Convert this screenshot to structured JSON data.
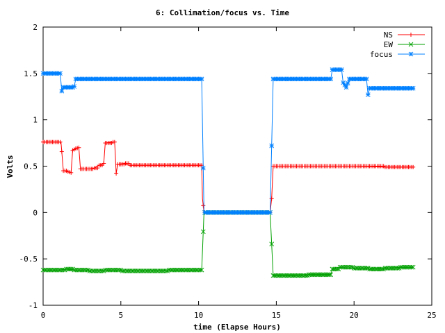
{
  "chart_data": {
    "type": "line",
    "title": "6: Collimation/focus vs. Time",
    "xlabel": "time (Elapse Hours)",
    "ylabel": "Volts",
    "xlim": [
      0,
      25
    ],
    "ylim": [
      -1,
      2
    ],
    "xticks": [
      0,
      5,
      10,
      15,
      20,
      25
    ],
    "yticks": [
      -1,
      -0.5,
      0,
      0.5,
      1,
      1.5,
      2
    ],
    "xtick_labels": [
      "0",
      "5",
      "10",
      "15",
      "20",
      "25"
    ],
    "ytick_labels": [
      "-1",
      "-0.5",
      "0",
      "0.5",
      "1",
      "1.5",
      "2"
    ],
    "grid": false,
    "legend_position": "top-right",
    "series": [
      {
        "name": "NS",
        "color": "#ff0000",
        "marker": "plus",
        "points": [
          [
            0,
            0.76
          ],
          [
            0.5,
            0.76
          ],
          [
            1.0,
            0.76
          ],
          [
            1.15,
            0.76
          ],
          [
            1.3,
            0.45
          ],
          [
            1.6,
            0.44
          ],
          [
            1.8,
            0.43
          ],
          [
            1.9,
            0.67
          ],
          [
            2.1,
            0.69
          ],
          [
            2.3,
            0.7
          ],
          [
            2.4,
            0.47
          ],
          [
            3.0,
            0.47
          ],
          [
            3.3,
            0.48
          ],
          [
            3.6,
            0.51
          ],
          [
            3.9,
            0.53
          ],
          [
            4.0,
            0.75
          ],
          [
            4.4,
            0.76
          ],
          [
            4.6,
            0.76
          ],
          [
            4.7,
            0.42
          ],
          [
            4.8,
            0.52
          ],
          [
            5.2,
            0.53
          ],
          [
            5.5,
            0.51
          ],
          [
            7.0,
            0.51
          ],
          [
            9.0,
            0.51
          ],
          [
            10.2,
            0.51
          ],
          [
            10.25,
            0.15
          ],
          [
            10.35,
            0.0
          ],
          [
            12.0,
            0.0
          ],
          [
            14.6,
            0.0
          ],
          [
            14.7,
            0.15
          ],
          [
            14.8,
            0.5
          ],
          [
            17.0,
            0.5
          ],
          [
            19.0,
            0.5
          ],
          [
            20.0,
            0.5
          ],
          [
            22.0,
            0.49
          ],
          [
            23.8,
            0.49
          ]
        ]
      },
      {
        "name": "EW",
        "color": "#00a000",
        "marker": "cross",
        "points": [
          [
            0,
            -0.62
          ],
          [
            1.0,
            -0.62
          ],
          [
            1.5,
            -0.61
          ],
          [
            2.0,
            -0.62
          ],
          [
            3.0,
            -0.63
          ],
          [
            4.0,
            -0.62
          ],
          [
            5.0,
            -0.63
          ],
          [
            6.0,
            -0.63
          ],
          [
            7.0,
            -0.63
          ],
          [
            8.0,
            -0.62
          ],
          [
            9.0,
            -0.62
          ],
          [
            10.2,
            -0.62
          ],
          [
            10.35,
            0.0
          ],
          [
            12.0,
            0.0
          ],
          [
            14.6,
            0.0
          ],
          [
            14.8,
            -0.68
          ],
          [
            16.0,
            -0.68
          ],
          [
            17.0,
            -0.67
          ],
          [
            18.0,
            -0.67
          ],
          [
            18.5,
            -0.67
          ],
          [
            18.6,
            -0.61
          ],
          [
            19.0,
            -0.59
          ],
          [
            20.0,
            -0.6
          ],
          [
            21.0,
            -0.61
          ],
          [
            22.0,
            -0.6
          ],
          [
            23.0,
            -0.59
          ],
          [
            23.8,
            -0.59
          ]
        ]
      },
      {
        "name": "focus",
        "color": "#0080ff",
        "marker": "star",
        "points": [
          [
            0,
            1.5
          ],
          [
            0.6,
            1.5
          ],
          [
            1.1,
            1.5
          ],
          [
            1.2,
            1.31
          ],
          [
            1.3,
            1.35
          ],
          [
            2.0,
            1.36
          ],
          [
            2.1,
            1.44
          ],
          [
            5.0,
            1.44
          ],
          [
            8.0,
            1.44
          ],
          [
            10.2,
            1.44
          ],
          [
            10.35,
            0.0
          ],
          [
            12.0,
            0.0
          ],
          [
            14.6,
            0.0
          ],
          [
            14.8,
            1.44
          ],
          [
            17.0,
            1.44
          ],
          [
            18.5,
            1.44
          ],
          [
            18.6,
            1.54
          ],
          [
            19.2,
            1.54
          ],
          [
            19.3,
            1.4
          ],
          [
            19.5,
            1.35
          ],
          [
            19.7,
            1.44
          ],
          [
            20.0,
            1.44
          ],
          [
            20.8,
            1.44
          ],
          [
            20.9,
            1.27
          ],
          [
            21.0,
            1.34
          ],
          [
            22.5,
            1.34
          ],
          [
            23.8,
            1.34
          ]
        ]
      }
    ]
  }
}
